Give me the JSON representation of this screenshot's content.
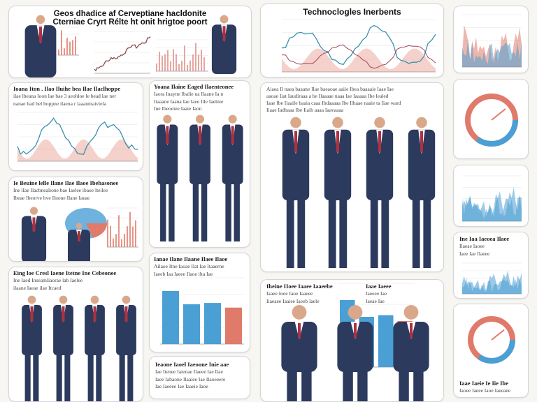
{
  "header": {
    "title_line1": "Geos dhadice af Cerveptiane hacldonite",
    "title_line2": "Cterniae Cryrt Rélte ht onit hrigtoe poort"
  },
  "tech_panel": {
    "title": "Technoclogles Inerbents"
  },
  "texts": {
    "left1": {
      "heading": "Ioana Iton . Ilao Iluihe bea Ilae Ilaclhoppe",
      "lines": [
        "ilae lbeana Ioon lae bae 3 aeohloe le bead lae ner",
        "nanae bad bel boppne ilaena r laaanmaiviela"
      ]
    },
    "left2": {
      "heading": "Ie Beuine lelle Ilane Ilae Ilaoe Ibehasonee",
      "lines": [
        "Ine lIae Ilacbnealione bae Iaelee ibaoe lteilee",
        "Ibeae Ibeorve hve Ilnone Ilane Iaeae"
      ]
    },
    "left3": {
      "heading": "Eing loe Cresl Iaene Itetne Ine Cebeonee",
      "lines": [
        "Ine Iaed Inseamliaorae lab Iaelee",
        "ilaane Iaeae ilae Itcaed"
      ]
    },
    "mid1": {
      "heading": "Yoana Ilaine Eaged Ilaenteonee",
      "lines": [
        "Iaora Inayne Ibalie ua Ilaane Ia n",
        "Iiaaane Iaana Iae Iaee Iile Iaelnie",
        "Ine Ibeoeiee Iaaie Iaon"
      ]
    },
    "mid2": {
      "heading": "Ianae Ilane Ilaane Ilaee Ilaoe",
      "lines": [
        "Ailaoe Itne Iaoae Ilat Iae Itaaerne",
        "Iaeeb Iaa Iaeee Ilaoe ilta Iae"
      ]
    },
    "mid3": {
      "heading": "Ieaone Iaoel Iaeoone Inie aae",
      "lines": [
        "Iae Itenee Iaienae Ilaeee Iae Ilae",
        "Iaee Iabaone Ilaaiee Iae Ilaoeeere",
        "Iae Iaeeee Iae Iaaeie Iaoe"
      ]
    },
    "center1": {
      "heading": "Aiaea Il naea baaane Ilae baeaoae aaiie Ibea baaaaie Iaae Iae",
      "lines": [
        "aaoae Iiat Iaudiraaa a be Ilaaaae naaa lae Iaaaaa Ibe lealed",
        "Iaae Ibe Ilaaile baaia caaa Ibdaaaaa Ibe Ilhaae naaie ta Iiae ward",
        "Iiaae Iadbaaa Ibe Iiaih aaaa Iaavaaaa"
      ]
    },
    "center2": {
      "heading": "Iheine IIoee Iaaee Iaaeebe",
      "lines": [
        "Iaaee Ioee Iaoe Iaaeee",
        "Iiaeaee Iaaiee Iaeeb Iaele"
      ]
    },
    "center2b": {
      "heading": "Iaae Iaeee",
      "lines": [
        "Iaeeee Iae",
        "Iaeae Iae"
      ]
    },
    "right4": {
      "heading": "Ine Iaa Iaeoea Ilaee",
      "lines": [
        "Ilaeae Iaoee",
        "Iaee Iae Ilaeee"
      ]
    },
    "right5": {
      "heading": "Iaae Iaeie Ie Iie Ibe",
      "lines": [
        "Iaoee Iaeee Iaoe Iaeeaee"
      ]
    }
  },
  "colors": {
    "suit": "#2c3a5e",
    "blue": "#4a9fd4",
    "salmon": "#e07a6a",
    "teal": "#3a8fb0"
  }
}
